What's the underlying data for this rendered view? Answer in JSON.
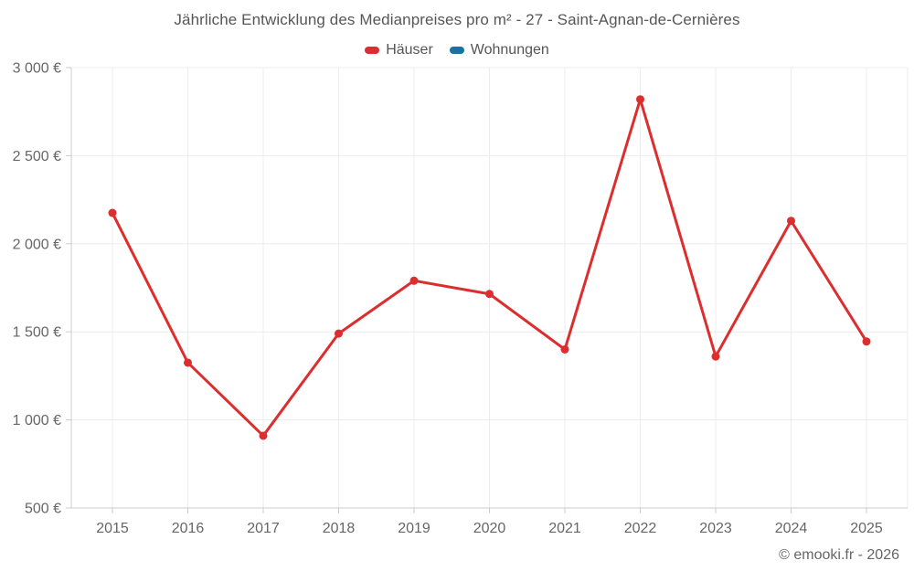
{
  "title": "Jährliche Entwicklung des Medianpreises pro m² - 27 - Saint-Agnan-de-Cernières",
  "legend": [
    {
      "label": "Häuser",
      "color": "#dc2e2e"
    },
    {
      "label": "Wohnungen",
      "color": "#1572a6"
    }
  ],
  "footer": "© emooki.fr - 2026",
  "colors": {
    "hauser_red": "#dc2e2e",
    "wohnungen_blue": "#1572a6",
    "grid": "#ececec",
    "axis": "#cccccc",
    "tick_text": "#666666",
    "title_text": "#565656"
  },
  "chart_data": {
    "type": "line",
    "title": "Jährliche Entwicklung des Medianpreises pro m² - 27 - Saint-Agnan-de-Cernières",
    "xlabel": "",
    "ylabel": "",
    "categories": [
      "2015",
      "2016",
      "2017",
      "2018",
      "2019",
      "2020",
      "2021",
      "2022",
      "2023",
      "2024",
      "2025"
    ],
    "series": [
      {
        "name": "Häuser",
        "color": "#dc2e2e",
        "values": [
          2175,
          1325,
          910,
          1490,
          1790,
          1715,
          1400,
          2820,
          1360,
          2130,
          1445
        ]
      },
      {
        "name": "Wohnungen",
        "color": "#1572a6",
        "values": []
      }
    ],
    "ylim": [
      500,
      3000
    ],
    "y_ticks": [
      {
        "value": 3000,
        "label": "3 000 €"
      },
      {
        "value": 2500,
        "label": "2 500 €"
      },
      {
        "value": 2000,
        "label": "2 000 €"
      },
      {
        "value": 1500,
        "label": "1 500 €"
      },
      {
        "value": 1000,
        "label": "1 000 €"
      },
      {
        "value": 500,
        "label": "500 €"
      }
    ],
    "grid": true,
    "legend_position": "top"
  }
}
